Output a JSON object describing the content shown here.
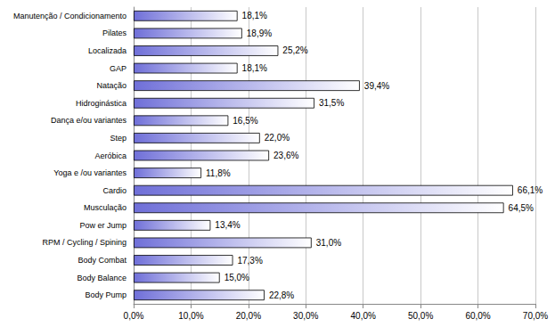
{
  "chart_data": {
    "type": "bar",
    "orientation": "horizontal",
    "categories": [
      "Manutenção / Condicionamento",
      "Pilates",
      "Localizada",
      "GAP",
      "Natação",
      "Hidroginástica",
      "Dança e/ou variantes",
      "Step",
      "Aeróbica",
      "Yoga e /ou variantes",
      "Cardio",
      "Musculação",
      "Pow er Jump",
      "RPM / Cycling / Spining",
      "Body Combat",
      "Body Balance",
      "Body Pump"
    ],
    "values": [
      18.1,
      18.9,
      25.2,
      18.1,
      39.4,
      31.5,
      16.5,
      22.0,
      23.6,
      11.8,
      66.1,
      64.5,
      13.4,
      31.0,
      17.3,
      15.0,
      22.8
    ],
    "value_labels": [
      "18,1%",
      "18,9%",
      "25,2%",
      "18,1%",
      "39,4%",
      "31,5%",
      "16,5%",
      "22,0%",
      "23,6%",
      "11,8%",
      "66,1%",
      "64,5%",
      "13,4%",
      "31,0%",
      "17,3%",
      "15,0%",
      "22,8%"
    ],
    "color": "#6f6fd8",
    "xlim": [
      0,
      70
    ],
    "xticks": [
      {
        "value": 0,
        "label": "0,0%"
      },
      {
        "value": 10,
        "label": "10,0%"
      },
      {
        "value": 20,
        "label": "20,0%"
      },
      {
        "value": 30,
        "label": "30,0%"
      },
      {
        "value": 40,
        "label": "40,0%"
      },
      {
        "value": 50,
        "label": "50,0%"
      },
      {
        "value": 60,
        "label": "60,0%"
      },
      {
        "value": 70,
        "label": "70,0%"
      }
    ],
    "grid": true,
    "data_labels": true
  }
}
